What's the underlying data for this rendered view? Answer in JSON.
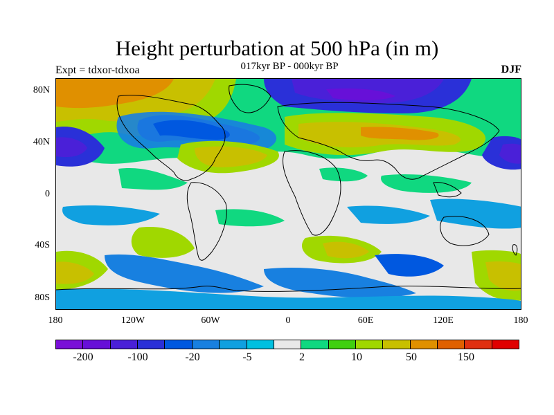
{
  "title": "Height perturbation at 500 hPa (in m)",
  "subtitle": "017kyr BP - 000kyr BP",
  "experiment": "Expt = tdxor-tdxoa",
  "season": "DJF",
  "lat_ticks": [
    "80N",
    "40N",
    "0",
    "40S",
    "80S"
  ],
  "lon_ticks": [
    "180",
    "120W",
    "60W",
    "0",
    "60E",
    "120E",
    "180"
  ],
  "colorbar": {
    "colors": [
      "#7a10d8",
      "#6710d8",
      "#4a20d8",
      "#2a30d8",
      "#0058e0",
      "#1880e0",
      "#10a0e0",
      "#00c0e0",
      "#e8e8e8",
      "#10d880",
      "#40d010",
      "#a0d800",
      "#c8c000",
      "#e09000",
      "#e06000",
      "#e03010",
      "#e00000"
    ],
    "labels": [
      "-200",
      "-100",
      "-20",
      "-5",
      "2",
      "10",
      "50",
      "150"
    ]
  },
  "colors": {
    "ocean_background": "#e8e8e8",
    "coastline": "#000000"
  }
}
